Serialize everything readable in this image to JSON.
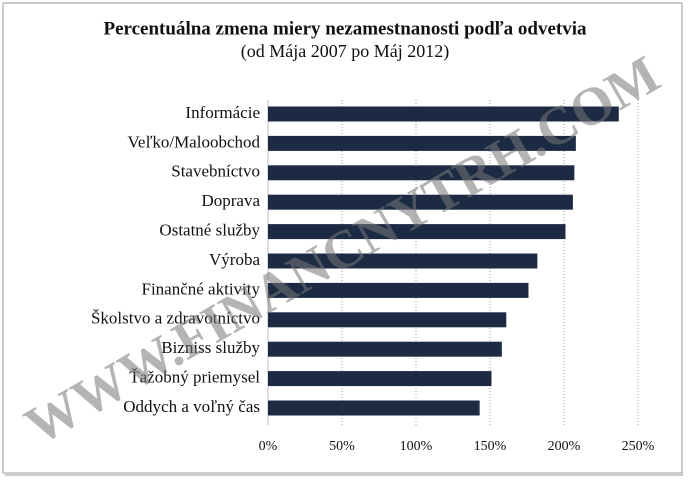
{
  "chart_data": {
    "type": "barh",
    "title": "Percentuálna zmena miery nezamestnanosti podľa odvetvia",
    "subtitle": "(od Mája 2007 po Máj 2012)",
    "watermark": "WWW.FINANCNYTRH.COM",
    "categories": [
      "Informácie",
      "Veľko/Maloobchod",
      "Stavebníctvo",
      "Doprava",
      "Ostatné služby",
      "Výroba",
      "Finančné aktivity",
      "Školstvo a zdravotníctvo",
      "Bizniss služby",
      "Ťažobný priemysel",
      "Oddych a voľný čas"
    ],
    "values": [
      237,
      208,
      207,
      206,
      201,
      182,
      176,
      161,
      158,
      151,
      143
    ],
    "color": "#1c2a44",
    "xlim": [
      0,
      250
    ],
    "xticks": [
      {
        "value": 0,
        "label": "0%"
      },
      {
        "value": 50,
        "label": "50%"
      },
      {
        "value": 100,
        "label": "100%"
      },
      {
        "value": 150,
        "label": "150%"
      },
      {
        "value": 200,
        "label": "200%"
      },
      {
        "value": 250,
        "label": "250%"
      }
    ],
    "grid": true
  }
}
